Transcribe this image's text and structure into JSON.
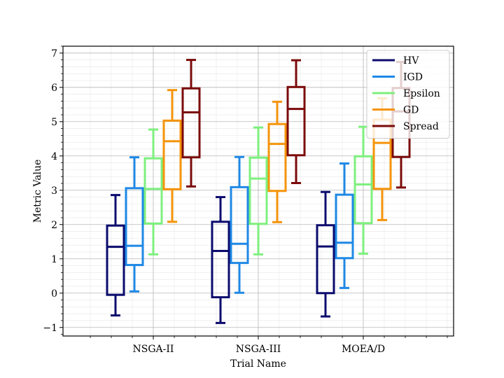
{
  "chart_data": {
    "type": "boxplot",
    "title": "",
    "xlabel": "Trial Name",
    "ylabel": "Metric Value",
    "ylim": [
      -1.25,
      7.2
    ],
    "yticks": [
      -1,
      0,
      1,
      2,
      3,
      4,
      5,
      6,
      7
    ],
    "ytick_labels": [
      "−1",
      "0",
      "1",
      "2",
      "3",
      "4",
      "5",
      "6",
      "7"
    ],
    "categories": [
      "NSGA-II",
      "NSGA-III",
      "MOEA/D"
    ],
    "grid": true,
    "legend_position": "top-right",
    "series": [
      {
        "name": "HV",
        "color": "#0b0b6e",
        "boxes": [
          {
            "whisker_low": -0.65,
            "q1": -0.05,
            "median": 1.35,
            "q3": 1.97,
            "whisker_high": 2.86
          },
          {
            "whisker_low": -0.87,
            "q1": -0.12,
            "median": 1.23,
            "q3": 2.08,
            "whisker_high": 2.8
          },
          {
            "whisker_low": -0.68,
            "q1": 0.0,
            "median": 1.36,
            "q3": 1.98,
            "whisker_high": 2.95
          }
        ]
      },
      {
        "name": "IGD",
        "color": "#1e88e5",
        "boxes": [
          {
            "whisker_low": 0.05,
            "q1": 0.82,
            "median": 1.38,
            "q3": 3.06,
            "whisker_high": 3.96
          },
          {
            "whisker_low": 0.01,
            "q1": 0.88,
            "median": 1.44,
            "q3": 3.09,
            "whisker_high": 3.97
          },
          {
            "whisker_low": 0.15,
            "q1": 1.02,
            "median": 1.47,
            "q3": 2.87,
            "whisker_high": 3.78
          }
        ]
      },
      {
        "name": "Epsilon",
        "color": "#7ef07e",
        "boxes": [
          {
            "whisker_low": 1.13,
            "q1": 2.03,
            "median": 3.04,
            "q3": 3.93,
            "whisker_high": 4.77
          },
          {
            "whisker_low": 1.13,
            "q1": 2.02,
            "median": 3.34,
            "q3": 3.95,
            "whisker_high": 4.83
          },
          {
            "whisker_low": 1.15,
            "q1": 2.04,
            "median": 3.17,
            "q3": 3.99,
            "whisker_high": 4.85
          }
        ]
      },
      {
        "name": "GD",
        "color": "#f5940b",
        "boxes": [
          {
            "whisker_low": 2.08,
            "q1": 3.03,
            "median": 4.43,
            "q3": 5.03,
            "whisker_high": 5.92
          },
          {
            "whisker_low": 2.07,
            "q1": 2.98,
            "median": 4.35,
            "q3": 4.93,
            "whisker_high": 5.58
          },
          {
            "whisker_low": 2.13,
            "q1": 3.04,
            "median": 4.38,
            "q3": 5.06,
            "whisker_high": 5.68
          }
        ]
      },
      {
        "name": "Spread",
        "color": "#7b0a0a",
        "boxes": [
          {
            "whisker_low": 3.11,
            "q1": 3.96,
            "median": 5.27,
            "q3": 5.97,
            "whisker_high": 6.8
          },
          {
            "whisker_low": 3.21,
            "q1": 4.02,
            "median": 5.37,
            "q3": 6.01,
            "whisker_high": 6.79
          },
          {
            "whisker_low": 3.08,
            "q1": 3.97,
            "median": 5.3,
            "q3": 5.98,
            "whisker_high": 6.74
          }
        ]
      }
    ]
  }
}
